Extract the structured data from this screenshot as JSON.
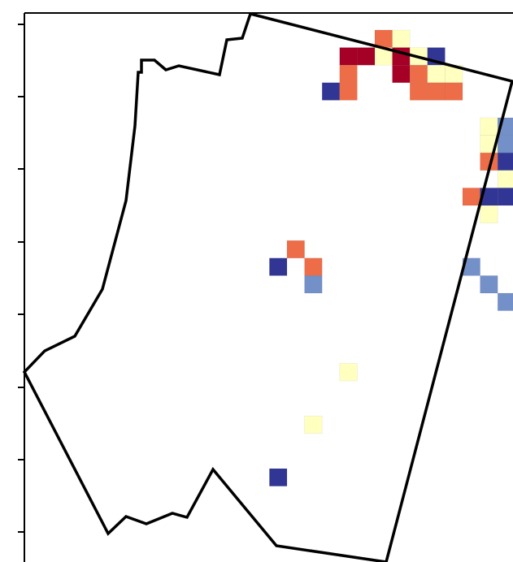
{
  "colors": {
    "dark_red": "#a50026",
    "orange": "#ec6d47",
    "light_yellow": "#ffffc0",
    "light_blue": "#7390c8",
    "dark_blue": "#313695",
    "boundary": "#000000"
  },
  "cells": [
    {
      "col": 10,
      "row": 0,
      "c": "orange"
    },
    {
      "col": 11,
      "row": 0,
      "c": "light_yellow"
    },
    {
      "col": 8,
      "row": 1,
      "c": "dark_red"
    },
    {
      "col": 9,
      "row": 1,
      "c": "dark_red"
    },
    {
      "col": 10,
      "row": 1,
      "c": "light_yellow"
    },
    {
      "col": 11,
      "row": 1,
      "c": "dark_red"
    },
    {
      "col": 12,
      "row": 1,
      "c": "light_yellow"
    },
    {
      "col": 13,
      "row": 1,
      "c": "dark_blue"
    },
    {
      "col": 8,
      "row": 2,
      "c": "orange"
    },
    {
      "col": 11,
      "row": 2,
      "c": "dark_red"
    },
    {
      "col": 12,
      "row": 2,
      "c": "orange"
    },
    {
      "col": 13,
      "row": 2,
      "c": "light_yellow"
    },
    {
      "col": 14,
      "row": 2,
      "c": "light_yellow"
    },
    {
      "col": 7,
      "row": 3,
      "c": "dark_blue"
    },
    {
      "col": 8,
      "row": 3,
      "c": "orange"
    },
    {
      "col": 12,
      "row": 3,
      "c": "orange"
    },
    {
      "col": 13,
      "row": 3,
      "c": "orange"
    },
    {
      "col": 14,
      "row": 3,
      "c": "orange"
    },
    {
      "col": 18,
      "row": 2,
      "c": "light_yellow"
    },
    {
      "col": 18,
      "row": 3,
      "c": "light_yellow"
    },
    {
      "col": 19,
      "row": 3,
      "c": "light_blue"
    },
    {
      "col": 20,
      "row": 3,
      "c": "orange"
    },
    {
      "col": 18,
      "row": 4,
      "c": "light_blue"
    },
    {
      "col": 19,
      "row": 4,
      "c": "orange"
    },
    {
      "col": 20,
      "row": 4,
      "c": "dark_red"
    },
    {
      "col": 16,
      "row": 5,
      "c": "light_yellow"
    },
    {
      "col": 17,
      "row": 5,
      "c": "light_blue"
    },
    {
      "col": 18,
      "row": 5,
      "c": "light_blue"
    },
    {
      "col": 19,
      "row": 5,
      "c": "light_blue"
    },
    {
      "col": 20,
      "row": 5,
      "c": "light_yellow"
    },
    {
      "col": 16,
      "row": 6,
      "c": "light_yellow"
    },
    {
      "col": 17,
      "row": 6,
      "c": "light_blue"
    },
    {
      "col": 18,
      "row": 6,
      "c": "light_blue"
    },
    {
      "col": 19,
      "row": 6,
      "c": "light_blue"
    },
    {
      "col": 16,
      "row": 7,
      "c": "orange"
    },
    {
      "col": 17,
      "row": 7,
      "c": "dark_blue"
    },
    {
      "col": 18,
      "row": 7,
      "c": "light_blue"
    },
    {
      "col": 19,
      "row": 7,
      "c": "orange"
    },
    {
      "col": 20,
      "row": 7,
      "c": "dark_red"
    },
    {
      "col": 21,
      "row": 7,
      "c": "light_blue"
    },
    {
      "col": 17,
      "row": 8,
      "c": "light_yellow"
    },
    {
      "col": 18,
      "row": 8,
      "c": "light_blue"
    },
    {
      "col": 19,
      "row": 8,
      "c": "dark_red"
    },
    {
      "col": 20,
      "row": 8,
      "c": "light_yellow"
    },
    {
      "col": 15,
      "row": 9,
      "c": "orange"
    },
    {
      "col": 16,
      "row": 9,
      "c": "dark_blue"
    },
    {
      "col": 17,
      "row": 9,
      "c": "dark_blue"
    },
    {
      "col": 18,
      "row": 9,
      "c": "light_yellow"
    },
    {
      "col": 19,
      "row": 9,
      "c": "light_yellow"
    },
    {
      "col": 20,
      "row": 9,
      "c": "light_yellow"
    },
    {
      "col": 16,
      "row": 10,
      "c": "light_yellow"
    },
    {
      "col": 18,
      "row": 10,
      "c": "dark_blue"
    },
    {
      "col": 19,
      "row": 10,
      "c": "light_yellow"
    },
    {
      "col": 20,
      "row": 10,
      "c": "light_yellow"
    },
    {
      "col": 5,
      "row": 12,
      "c": "orange"
    },
    {
      "col": 4,
      "row": 13,
      "c": "dark_blue"
    },
    {
      "col": 6,
      "row": 13,
      "c": "orange"
    },
    {
      "col": 6,
      "row": 14,
      "c": "light_blue"
    },
    {
      "col": 15,
      "row": 13,
      "c": "light_blue"
    },
    {
      "col": 16,
      "row": 14,
      "c": "light_blue"
    },
    {
      "col": 17,
      "row": 15,
      "c": "light_blue"
    },
    {
      "col": 8,
      "row": 19,
      "c": "light_yellow"
    },
    {
      "col": 6,
      "row": 22,
      "c": "light_yellow"
    },
    {
      "col": 4,
      "row": 25,
      "c": "dark_blue"
    }
  ]
}
